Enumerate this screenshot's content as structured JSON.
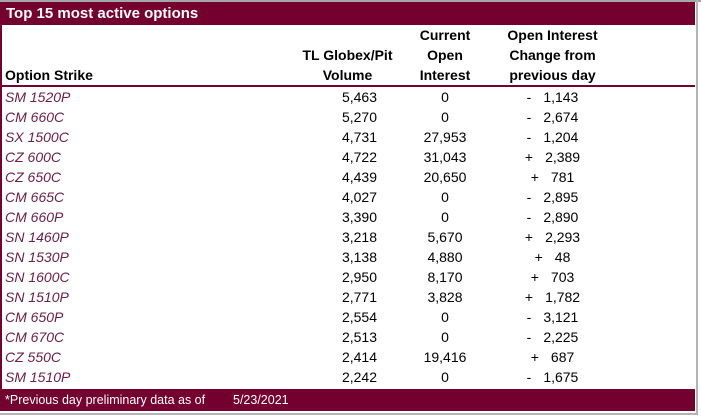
{
  "colors": {
    "maroon": "#74002F",
    "strike_text": "#6B1F44",
    "edge_gray": "#B3B3B3"
  },
  "title": "Top 15 most active options",
  "header": {
    "option_strike": [
      "Option Strike"
    ],
    "volume": [
      "TL Globex/Pit",
      "Volume"
    ],
    "open_interest": [
      "Current",
      "Open",
      "Interest"
    ],
    "change": [
      "Open Interest",
      "Change from",
      "previous day"
    ]
  },
  "rows": [
    {
      "strike": "SM 1520P",
      "volume": "5,463",
      "open_interest": "0",
      "change_sign": "-",
      "change_value": "1,143"
    },
    {
      "strike": "CM 660C",
      "volume": "5,270",
      "open_interest": "0",
      "change_sign": "-",
      "change_value": "2,674"
    },
    {
      "strike": "SX 1500C",
      "volume": "4,731",
      "open_interest": "27,953",
      "change_sign": "-",
      "change_value": "1,204"
    },
    {
      "strike": "CZ 600C",
      "volume": "4,722",
      "open_interest": "31,043",
      "change_sign": "+",
      "change_value": "2,389"
    },
    {
      "strike": "CZ 650C",
      "volume": "4,439",
      "open_interest": "20,650",
      "change_sign": "+",
      "change_value": "781"
    },
    {
      "strike": "CM 665C",
      "volume": "4,027",
      "open_interest": "0",
      "change_sign": "-",
      "change_value": "2,895"
    },
    {
      "strike": "CM 660P",
      "volume": "3,390",
      "open_interest": "0",
      "change_sign": "-",
      "change_value": "2,890"
    },
    {
      "strike": "SN 1460P",
      "volume": "3,218",
      "open_interest": "5,670",
      "change_sign": "+",
      "change_value": "2,293"
    },
    {
      "strike": "SN 1530P",
      "volume": "3,138",
      "open_interest": "4,880",
      "change_sign": "+",
      "change_value": "48"
    },
    {
      "strike": "SN 1600C",
      "volume": "2,950",
      "open_interest": "8,170",
      "change_sign": "+",
      "change_value": "703"
    },
    {
      "strike": "SN 1510P",
      "volume": "2,771",
      "open_interest": "3,828",
      "change_sign": "+",
      "change_value": "1,782"
    },
    {
      "strike": "CM 650P",
      "volume": "2,554",
      "open_interest": "0",
      "change_sign": "-",
      "change_value": "3,121"
    },
    {
      "strike": "CM 670C",
      "volume": "2,513",
      "open_interest": "0",
      "change_sign": "-",
      "change_value": "2,225"
    },
    {
      "strike": "CZ 550C",
      "volume": "2,414",
      "open_interest": "19,416",
      "change_sign": "+",
      "change_value": "687"
    },
    {
      "strike": "SM 1510P",
      "volume": "2,242",
      "open_interest": "0",
      "change_sign": "-",
      "change_value": "1,675"
    }
  ],
  "footer": {
    "note": "*Previous day preliminary data as of",
    "date": "5/23/2021"
  },
  "chart_data": {
    "type": "table",
    "title": "Top 15 most active options",
    "columns": [
      "Option Strike",
      "TL Globex/Pit Volume",
      "Current Open Interest",
      "Open Interest Change from previous day"
    ],
    "rows": [
      [
        "SM 1520P",
        5463,
        0,
        -1143
      ],
      [
        "CM 660C",
        5270,
        0,
        -2674
      ],
      [
        "SX 1500C",
        4731,
        27953,
        -1204
      ],
      [
        "CZ 600C",
        4722,
        31043,
        2389
      ],
      [
        "CZ 650C",
        4439,
        20650,
        781
      ],
      [
        "CM 665C",
        4027,
        0,
        -2895
      ],
      [
        "CM 660P",
        3390,
        0,
        -2890
      ],
      [
        "SN 1460P",
        3218,
        5670,
        2293
      ],
      [
        "SN 1530P",
        3138,
        4880,
        48
      ],
      [
        "SN 1600C",
        2950,
        8170,
        703
      ],
      [
        "SN 1510P",
        2771,
        3828,
        1782
      ],
      [
        "CM 650P",
        2554,
        0,
        -3121
      ],
      [
        "CM 670C",
        2513,
        0,
        -2225
      ],
      [
        "CZ 550C",
        2414,
        19416,
        687
      ],
      [
        "SM 1510P",
        2242,
        0,
        -1675
      ]
    ],
    "footnote": "*Previous day preliminary data as of 5/23/2021"
  }
}
